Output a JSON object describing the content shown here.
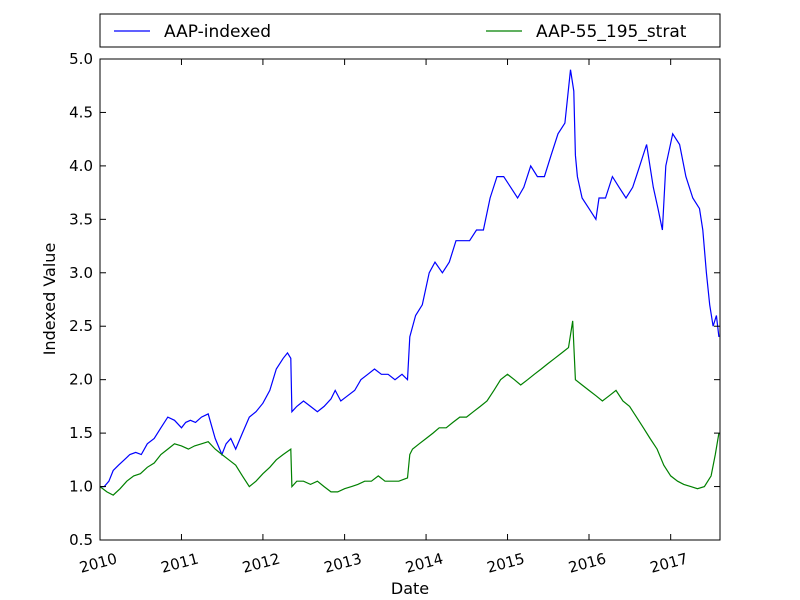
{
  "chart_data": {
    "type": "line",
    "xlabel": "Date",
    "ylabel": "Indexed Value",
    "xlim": [
      "2010-01-01",
      "2017-08-10"
    ],
    "ylim": [
      0.5,
      5.0
    ],
    "x_ticks": [
      "2010",
      "2011",
      "2012",
      "2013",
      "2014",
      "2015",
      "2016",
      "2017"
    ],
    "y_ticks": [
      "0.5",
      "1.0",
      "1.5",
      "2.0",
      "2.5",
      "3.0",
      "3.5",
      "4.0",
      "4.5",
      "5.0"
    ],
    "grid": false,
    "legend_position": "top, above plot, two columns",
    "colors": {
      "AAP-indexed": "#0000ff",
      "AAP-55_195_strat": "#008000"
    },
    "series": [
      {
        "name": "AAP-indexed",
        "x": [
          "2010-01-01",
          "2010-01-20",
          "2010-02-10",
          "2010-03-01",
          "2010-03-25",
          "2010-04-20",
          "2010-05-15",
          "2010-06-10",
          "2010-07-05",
          "2010-08-01",
          "2010-09-01",
          "2010-10-01",
          "2010-11-01",
          "2010-12-01",
          "2011-01-01",
          "2011-01-20",
          "2011-02-10",
          "2011-03-05",
          "2011-04-01",
          "2011-05-01",
          "2011-06-01",
          "2011-07-01",
          "2011-07-20",
          "2011-08-10",
          "2011-09-01",
          "2011-10-01",
          "2011-11-01",
          "2011-12-01",
          "2012-01-01",
          "2012-02-01",
          "2012-03-01",
          "2012-04-01",
          "2012-04-20",
          "2012-05-05",
          "2012-05-10",
          "2012-06-01",
          "2012-07-01",
          "2012-08-01",
          "2012-09-01",
          "2012-10-01",
          "2012-11-01",
          "2012-11-20",
          "2012-12-15",
          "2013-01-15",
          "2013-02-15",
          "2013-03-15",
          "2013-04-15",
          "2013-05-15",
          "2013-06-15",
          "2013-07-15",
          "2013-08-15",
          "2013-09-15",
          "2013-10-10",
          "2013-10-20",
          "2013-11-15",
          "2013-12-15",
          "2014-01-15",
          "2014-02-10",
          "2014-03-15",
          "2014-04-15",
          "2014-05-15",
          "2014-06-15",
          "2014-07-15",
          "2014-08-15",
          "2014-09-15",
          "2014-10-15",
          "2014-11-15",
          "2014-12-15",
          "2015-01-15",
          "2015-02-15",
          "2015-03-15",
          "2015-04-15",
          "2015-05-15",
          "2015-06-15",
          "2015-07-15",
          "2015-08-15",
          "2015-09-15",
          "2015-10-10",
          "2015-10-25",
          "2015-11-01",
          "2015-11-10",
          "2015-12-01",
          "2016-01-01",
          "2016-02-01",
          "2016-02-15",
          "2016-03-15",
          "2016-04-15",
          "2016-05-15",
          "2016-06-15",
          "2016-07-15",
          "2016-08-15",
          "2016-09-15",
          "2016-10-15",
          "2016-11-05",
          "2016-11-25",
          "2016-12-10",
          "2017-01-10",
          "2017-02-10",
          "2017-03-10",
          "2017-04-10",
          "2017-05-10",
          "2017-05-25",
          "2017-06-10",
          "2017-06-25",
          "2017-07-10",
          "2017-07-25",
          "2017-08-05"
        ],
        "y": [
          1.0,
          1.0,
          1.05,
          1.15,
          1.2,
          1.25,
          1.3,
          1.32,
          1.3,
          1.4,
          1.45,
          1.55,
          1.65,
          1.62,
          1.55,
          1.6,
          1.62,
          1.6,
          1.65,
          1.68,
          1.45,
          1.3,
          1.4,
          1.45,
          1.35,
          1.5,
          1.65,
          1.7,
          1.78,
          1.9,
          2.1,
          2.2,
          2.25,
          2.2,
          1.7,
          1.75,
          1.8,
          1.75,
          1.7,
          1.75,
          1.82,
          1.9,
          1.8,
          1.85,
          1.9,
          2.0,
          2.05,
          2.1,
          2.05,
          2.05,
          2.0,
          2.05,
          2.0,
          2.4,
          2.6,
          2.7,
          3.0,
          3.1,
          3.0,
          3.1,
          3.3,
          3.3,
          3.3,
          3.4,
          3.4,
          3.7,
          3.9,
          3.9,
          3.8,
          3.7,
          3.8,
          4.0,
          3.9,
          3.9,
          4.1,
          4.3,
          4.4,
          4.9,
          4.7,
          4.1,
          3.9,
          3.7,
          3.6,
          3.5,
          3.7,
          3.7,
          3.9,
          3.8,
          3.7,
          3.8,
          4.0,
          4.2,
          3.8,
          3.6,
          3.4,
          4.0,
          4.3,
          4.2,
          3.9,
          3.7,
          3.6,
          3.4,
          3.0,
          2.7,
          2.5,
          2.6,
          2.4
        ]
      },
      {
        "name": "AAP-55_195_strat",
        "x": [
          "2010-01-01",
          "2010-02-01",
          "2010-03-01",
          "2010-04-01",
          "2010-05-01",
          "2010-06-01",
          "2010-07-01",
          "2010-08-01",
          "2010-09-01",
          "2010-10-01",
          "2010-11-01",
          "2010-12-01",
          "2011-01-01",
          "2011-02-01",
          "2011-03-01",
          "2011-04-01",
          "2011-05-01",
          "2011-06-01",
          "2011-07-01",
          "2011-08-01",
          "2011-09-01",
          "2011-10-01",
          "2011-11-01",
          "2011-12-01",
          "2012-01-01",
          "2012-02-01",
          "2012-03-01",
          "2012-04-01",
          "2012-05-05",
          "2012-05-10",
          "2012-06-01",
          "2012-07-01",
          "2012-08-01",
          "2012-09-01",
          "2012-10-01",
          "2012-11-01",
          "2012-12-01",
          "2013-01-01",
          "2013-02-01",
          "2013-03-01",
          "2013-04-01",
          "2013-05-01",
          "2013-06-01",
          "2013-07-01",
          "2013-08-01",
          "2013-09-01",
          "2013-10-10",
          "2013-10-20",
          "2013-11-01",
          "2013-12-01",
          "2014-01-01",
          "2014-02-01",
          "2014-03-01",
          "2014-04-01",
          "2014-05-01",
          "2014-06-01",
          "2014-07-01",
          "2014-08-01",
          "2014-09-01",
          "2014-10-01",
          "2014-11-01",
          "2014-12-01",
          "2015-01-01",
          "2015-02-01",
          "2015-03-01",
          "2015-04-01",
          "2015-05-01",
          "2015-06-01",
          "2015-07-01",
          "2015-08-01",
          "2015-09-01",
          "2015-10-01",
          "2015-10-20",
          "2015-11-01",
          "2015-12-01",
          "2016-01-01",
          "2016-02-01",
          "2016-03-01",
          "2016-04-01",
          "2016-05-01",
          "2016-06-01",
          "2016-07-01",
          "2016-08-01",
          "2016-09-01",
          "2016-10-01",
          "2016-11-01",
          "2016-12-01",
          "2017-01-01",
          "2017-02-01",
          "2017-03-01",
          "2017-04-01",
          "2017-05-01",
          "2017-06-01",
          "2017-07-01",
          "2017-07-20",
          "2017-08-05"
        ],
        "y": [
          1.0,
          0.95,
          0.92,
          0.98,
          1.05,
          1.1,
          1.12,
          1.18,
          1.22,
          1.3,
          1.35,
          1.4,
          1.38,
          1.35,
          1.38,
          1.4,
          1.42,
          1.35,
          1.3,
          1.25,
          1.2,
          1.1,
          1.0,
          1.05,
          1.12,
          1.18,
          1.25,
          1.3,
          1.35,
          1.0,
          1.05,
          1.05,
          1.02,
          1.05,
          1.0,
          0.95,
          0.95,
          0.98,
          1.0,
          1.02,
          1.05,
          1.05,
          1.1,
          1.05,
          1.05,
          1.05,
          1.08,
          1.3,
          1.35,
          1.4,
          1.45,
          1.5,
          1.55,
          1.55,
          1.6,
          1.65,
          1.65,
          1.7,
          1.75,
          1.8,
          1.9,
          2.0,
          2.05,
          2.0,
          1.95,
          2.0,
          2.05,
          2.1,
          2.15,
          2.2,
          2.25,
          2.3,
          2.55,
          2.0,
          1.95,
          1.9,
          1.85,
          1.8,
          1.85,
          1.9,
          1.8,
          1.75,
          1.65,
          1.55,
          1.45,
          1.35,
          1.2,
          1.1,
          1.05,
          1.02,
          1.0,
          0.98,
          1.0,
          1.1,
          1.3,
          1.5
        ]
      }
    ]
  }
}
